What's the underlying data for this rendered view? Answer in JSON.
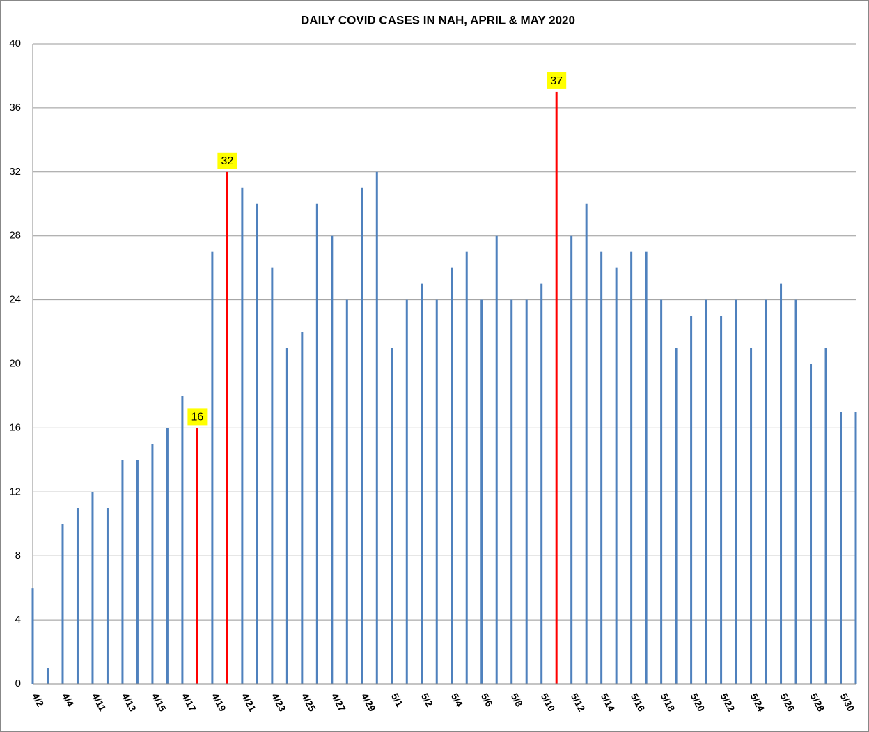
{
  "chart_data": {
    "type": "bar",
    "title": "DAILY COVID CASES IN NAH, APRIL & MAY 2020",
    "categories": [
      "4/2",
      null,
      "4/4",
      null,
      "4/11",
      null,
      "4/13",
      null,
      "4/15",
      null,
      "4/17",
      null,
      "4/19",
      null,
      "4/21",
      null,
      "4/23",
      null,
      "4/25",
      null,
      "4/27",
      null,
      "4/29",
      null,
      "5/1",
      null,
      "5/2",
      null,
      "5/4",
      null,
      "5/6",
      null,
      "5/8",
      null,
      "5/10",
      null,
      "5/12",
      null,
      "5/14",
      null,
      "5/16",
      null,
      "5/18",
      null,
      "5/20",
      null,
      "5/22",
      null,
      "5/24",
      null,
      "5/26",
      null,
      "5/28",
      null,
      "5/30",
      null
    ],
    "values": [
      6,
      1,
      10,
      11,
      12,
      11,
      14,
      14,
      15,
      16,
      18,
      16,
      27,
      32,
      31,
      30,
      26,
      21,
      22,
      30,
      28,
      24,
      31,
      32,
      21,
      24,
      25,
      24,
      26,
      27,
      24,
      28,
      24,
      24,
      25,
      37,
      28,
      30,
      27,
      26,
      27,
      27,
      24,
      21,
      23,
      24,
      23,
      24,
      21,
      24,
      25,
      24,
      20,
      21,
      17,
      17
    ],
    "value_labels": [
      null,
      null,
      null,
      null,
      null,
      null,
      null,
      null,
      null,
      null,
      null,
      "16",
      null,
      "32",
      null,
      null,
      null,
      null,
      null,
      null,
      null,
      null,
      null,
      null,
      null,
      null,
      null,
      null,
      null,
      null,
      null,
      null,
      null,
      null,
      null,
      "37",
      null,
      null,
      null,
      null,
      null,
      null,
      null,
      null,
      null,
      null,
      null,
      null,
      null,
      null,
      null,
      null,
      null,
      null,
      null,
      null
    ],
    "colors": [
      "#4f81bd",
      "#4f81bd",
      "#4f81bd",
      "#4f81bd",
      "#4f81bd",
      "#4f81bd",
      "#4f81bd",
      "#4f81bd",
      "#4f81bd",
      "#4f81bd",
      "#4f81bd",
      "#ff0000",
      "#4f81bd",
      "#ff0000",
      "#4f81bd",
      "#4f81bd",
      "#4f81bd",
      "#4f81bd",
      "#4f81bd",
      "#4f81bd",
      "#4f81bd",
      "#4f81bd",
      "#4f81bd",
      "#4f81bd",
      "#4f81bd",
      "#4f81bd",
      "#4f81bd",
      "#4f81bd",
      "#4f81bd",
      "#4f81bd",
      "#4f81bd",
      "#4f81bd",
      "#4f81bd",
      "#4f81bd",
      "#4f81bd",
      "#ff0000",
      "#4f81bd",
      "#4f81bd",
      "#4f81bd",
      "#4f81bd",
      "#4f81bd",
      "#4f81bd",
      "#4f81bd",
      "#4f81bd",
      "#4f81bd",
      "#4f81bd",
      "#4f81bd",
      "#4f81bd",
      "#4f81bd",
      "#4f81bd",
      "#4f81bd",
      "#4f81bd",
      "#4f81bd",
      "#4f81bd",
      "#4f81bd",
      "#4f81bd"
    ],
    "label_background": "#ffff00",
    "ylim": [
      0,
      40
    ],
    "yticks": [
      0,
      4,
      8,
      12,
      16,
      20,
      24,
      28,
      32,
      36,
      40
    ],
    "grid": true
  }
}
